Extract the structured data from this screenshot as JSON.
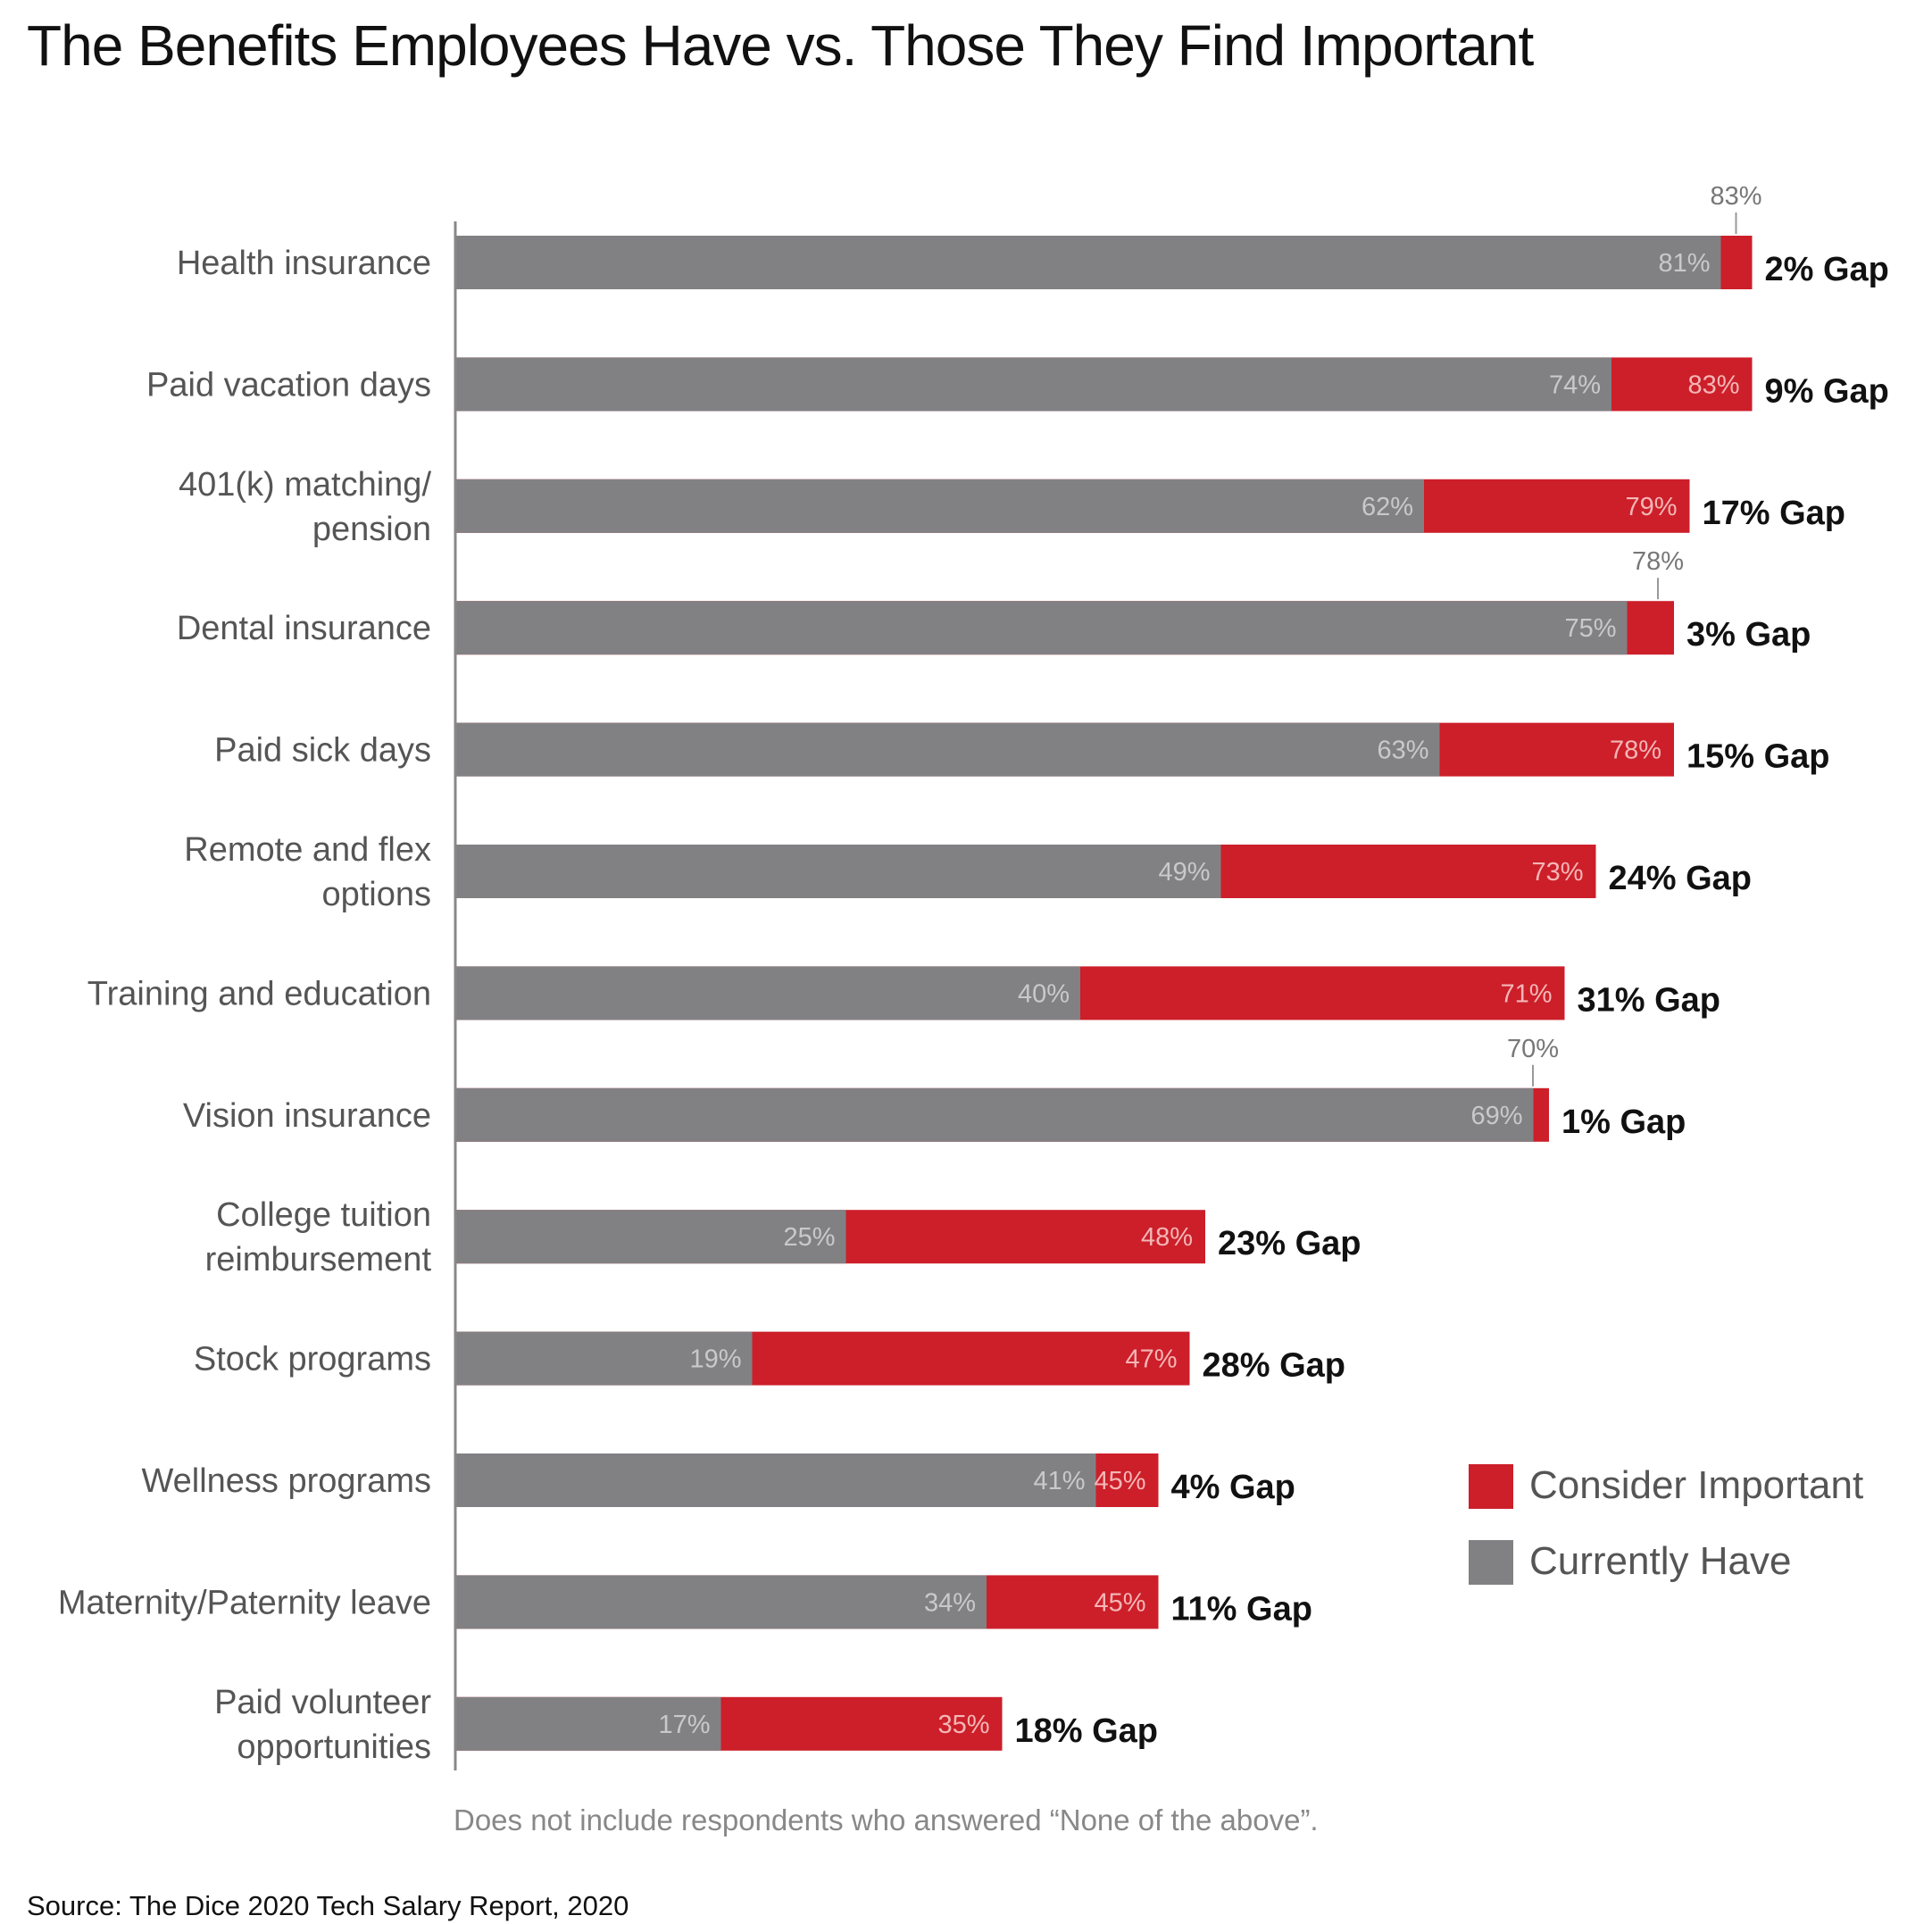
{
  "colors": {
    "currently_have": "#818184",
    "consider_important": "#cc1f2a",
    "axis": "#888888"
  },
  "chart_data": {
    "type": "bar",
    "orientation": "horizontal",
    "stacked_overlay": true,
    "title": "The Benefits Employees Have vs. Those They Find Important",
    "xlim": [
      0,
      100
    ],
    "grid": false,
    "legend_position": "right",
    "categories": [
      [
        "Health insurance"
      ],
      [
        "Paid vacation days"
      ],
      [
        "401(k) matching/",
        "pension"
      ],
      [
        "Dental insurance"
      ],
      [
        "Paid sick days"
      ],
      [
        "Remote and flex",
        "options"
      ],
      [
        "Training and education"
      ],
      [
        "Vision insurance"
      ],
      [
        "College tuition",
        "reimbursement"
      ],
      [
        "Stock programs"
      ],
      [
        "Wellness programs"
      ],
      [
        "Maternity/Paternity leave"
      ],
      [
        "Paid volunteer",
        "opportunities"
      ]
    ],
    "series": [
      {
        "name": "Currently Have",
        "values": [
          81,
          74,
          62,
          75,
          63,
          49,
          40,
          69,
          25,
          19,
          41,
          34,
          17
        ],
        "labels": [
          "81%",
          "74%",
          "62%",
          "75%",
          "63%",
          "49%",
          "40%",
          "69%",
          "25%",
          "19%",
          "41%",
          "34%",
          "17%"
        ]
      },
      {
        "name": "Consider Important",
        "values": [
          83,
          83,
          79,
          78,
          78,
          73,
          71,
          70,
          48,
          47,
          45,
          45,
          35
        ],
        "labels": [
          "83%",
          "83%",
          "79%",
          "78%",
          "78%",
          "73%",
          "71%",
          "70%",
          "48%",
          "47%",
          "45%",
          "45%",
          "35%"
        ],
        "label_above": [
          true,
          false,
          false,
          true,
          false,
          false,
          false,
          true,
          false,
          false,
          false,
          false,
          false
        ]
      }
    ],
    "gap_labels": [
      "2% Gap",
      "9% Gap",
      "17% Gap",
      "3% Gap",
      "15% Gap",
      "24% Gap",
      "31% Gap",
      "1% Gap",
      "23% Gap",
      "28% Gap",
      "4% Gap",
      "11% Gap",
      "18% Gap"
    ],
    "legend": [
      {
        "label": "Consider Important",
        "color": "#cc1f2a"
      },
      {
        "label": "Currently Have",
        "color": "#818184"
      }
    ],
    "footnote": "Does not include respondents who answered “None of the above”.",
    "source": "Source: The Dice 2020 Tech Salary Report, 2020"
  }
}
